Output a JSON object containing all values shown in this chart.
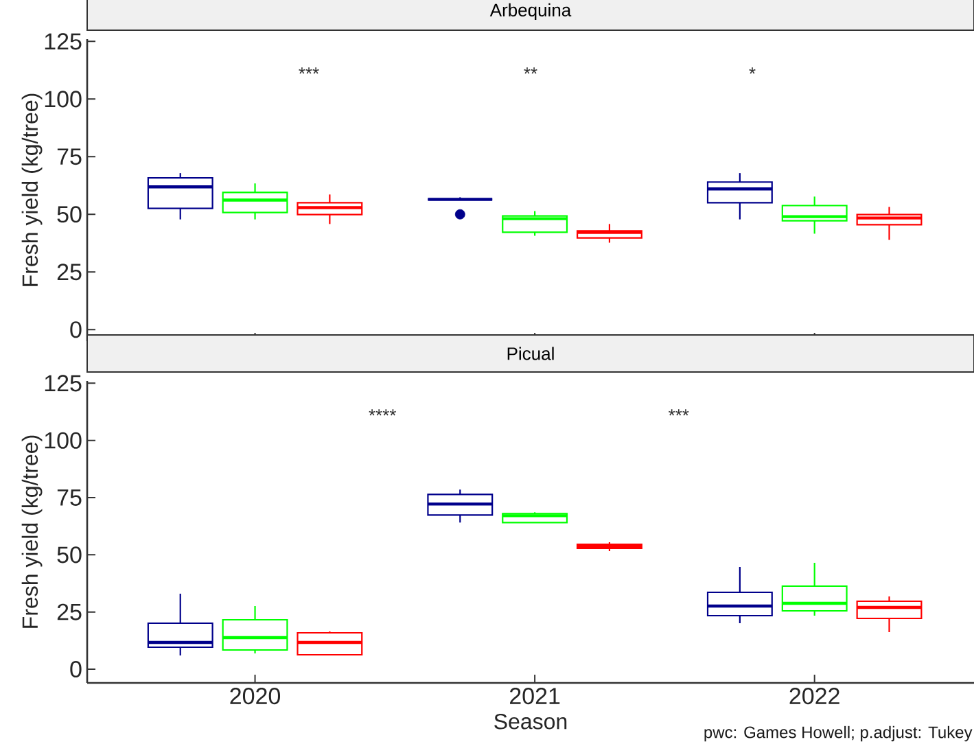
{
  "chart_data": [
    {
      "type": "box",
      "title": "Arbequina",
      "ylabel": "Fresh yield (kg/tree)",
      "categories": [
        "2020",
        "2021",
        "2022"
      ],
      "ylim": [
        -5,
        126
      ],
      "yticks": [
        0,
        25,
        50,
        75,
        100,
        125
      ],
      "tick_labels": "y",
      "series": [
        {
          "color": "#00008b",
          "boxes": [
            {
              "low": 47.8,
              "q1": 52.6,
              "median": 61.9,
              "q3": 65.8,
              "high": 67.9
            },
            {
              "low": 56.5,
              "q1": 56.5,
              "median": 56.5,
              "q3": 56.5,
              "high": 57.4,
              "outliers": [
                50
              ]
            },
            {
              "low": 47.8,
              "q1": 55.0,
              "median": 61.0,
              "q3": 64.0,
              "high": 67.9
            }
          ]
        },
        {
          "color": "#00ff00",
          "boxes": [
            {
              "low": 47.8,
              "q1": 50.8,
              "median": 56.2,
              "q3": 59.5,
              "high": 63.4
            },
            {
              "low": 40.7,
              "q1": 42.2,
              "median": 48.1,
              "q3": 49.3,
              "high": 51.4
            },
            {
              "low": 41.6,
              "q1": 47.2,
              "median": 49.0,
              "q3": 53.8,
              "high": 57.7
            }
          ]
        },
        {
          "color": "#ff0000",
          "boxes": [
            {
              "low": 45.8,
              "q1": 49.9,
              "median": 52.9,
              "q3": 55.0,
              "high": 58.6
            },
            {
              "low": 37.7,
              "q1": 39.8,
              "median": 42.2,
              "q3": 42.8,
              "high": 45.8
            },
            {
              "low": 38.9,
              "q1": 45.5,
              "median": 48.4,
              "q3": 49.9,
              "high": 53.2
            }
          ]
        }
      ],
      "annotations": [
        "***",
        "**",
        "*"
      ]
    },
    {
      "type": "box",
      "title": "Picual",
      "ylabel": "Fresh yield (kg/tree)",
      "xlabel": "Season",
      "categories": [
        "2020",
        "2021",
        "2022"
      ],
      "ylim": [
        -6,
        126
      ],
      "yticks": [
        0,
        25,
        50,
        75,
        100,
        125
      ],
      "series": [
        {
          "color": "#00008b",
          "boxes": [
            {
              "low": 6.0,
              "q1": 9.6,
              "median": 11.7,
              "q3": 20.1,
              "high": 33.0
            },
            {
              "low": 64.1,
              "q1": 67.4,
              "median": 72.2,
              "q3": 76.4,
              "high": 78.5
            },
            {
              "low": 20.1,
              "q1": 23.4,
              "median": 27.6,
              "q3": 33.6,
              "high": 44.7
            }
          ]
        },
        {
          "color": "#00ff00",
          "boxes": [
            {
              "low": 6.9,
              "q1": 8.4,
              "median": 13.8,
              "q3": 21.6,
              "high": 27.6
            },
            {
              "low": 64.1,
              "q1": 64.1,
              "median": 67.1,
              "q3": 68.0,
              "high": 68.6
            },
            {
              "low": 23.4,
              "q1": 25.5,
              "median": 28.8,
              "q3": 36.3,
              "high": 46.5
            }
          ]
        },
        {
          "color": "#ff0000",
          "boxes": [
            {
              "low": 6.3,
              "q1": 6.3,
              "median": 11.7,
              "q3": 15.9,
              "high": 16.5
            },
            {
              "low": 51.6,
              "q1": 52.8,
              "median": 53.7,
              "q3": 54.6,
              "high": 55.5
            },
            {
              "low": 16.2,
              "q1": 22.2,
              "median": 27.0,
              "q3": 29.7,
              "high": 31.8
            }
          ]
        }
      ],
      "annotations": [
        "****",
        "***",
        "pwc: Games Howell; p.adjust: Tukey"
      ]
    }
  ]
}
